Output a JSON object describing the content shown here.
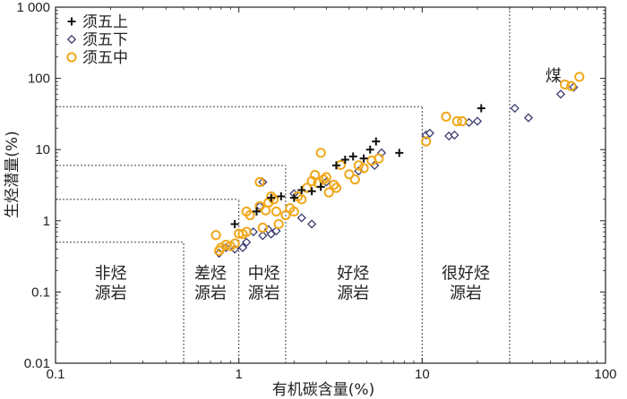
{
  "chart_data": {
    "type": "scatter",
    "x_scale": "log",
    "y_scale": "log",
    "xlim": [
      0.1,
      100
    ],
    "ylim": [
      0.01,
      1000
    ],
    "xlabel": "有机碳含量(%)",
    "ylabel": "生烃潜量(%)",
    "x_ticks": [
      "0.1",
      "1",
      "10",
      "100"
    ],
    "y_ticks": [
      "0.01",
      "0.1",
      "1",
      "10",
      "100",
      "1 000"
    ],
    "legend_position": "top-left",
    "region_labels": [
      {
        "text": [
          "非烃",
          "源岩"
        ],
        "x": 0.2,
        "y": 0.13
      },
      {
        "text": [
          "差烃",
          "源岩"
        ],
        "x": 0.7,
        "y": 0.13
      },
      {
        "text": [
          "中烃",
          "源岩"
        ],
        "x": 1.37,
        "y": 0.13
      },
      {
        "text": [
          "好烃",
          "源岩"
        ],
        "x": 4.2,
        "y": 0.13
      },
      {
        "text": [
          "很好烃",
          "源岩"
        ],
        "x": 17.3,
        "y": 0.13
      },
      {
        "text": [
          "煤"
        ],
        "x": 52,
        "y": 90
      }
    ],
    "boundaries": {
      "horizontal": [
        {
          "y": 0.5,
          "x_to": 0.5
        },
        {
          "y": 2,
          "x_to": 1
        },
        {
          "y": 6,
          "x_to": 1.8
        },
        {
          "y": 40,
          "x_to": 10
        }
      ],
      "vertical": [
        {
          "x": 0.5,
          "y_to": 0.5
        },
        {
          "x": 1,
          "y_to": 2
        },
        {
          "x": 1.8,
          "y_to": 6
        },
        {
          "x": 10,
          "y_to": 40
        },
        {
          "x": 30,
          "y_to": 1000
        }
      ]
    },
    "series": [
      {
        "name": "须五上",
        "marker": "plus",
        "color": "#111111",
        "points": [
          [
            0.95,
            0.9
          ],
          [
            1.25,
            1.35
          ],
          [
            1.5,
            2.1
          ],
          [
            1.7,
            2.2
          ],
          [
            2.0,
            2.1
          ],
          [
            2.2,
            2.7
          ],
          [
            2.5,
            2.6
          ],
          [
            2.8,
            3.0
          ],
          [
            3.4,
            6.0
          ],
          [
            3.8,
            7.2
          ],
          [
            4.2,
            8.0
          ],
          [
            4.8,
            7.5
          ],
          [
            5.2,
            10.0
          ],
          [
            5.6,
            13.0
          ],
          [
            7.5,
            9.0
          ],
          [
            21,
            38
          ]
        ]
      },
      {
        "name": "须五下",
        "marker": "diamond",
        "color": "#3c3c70",
        "points": [
          [
            0.78,
            0.35
          ],
          [
            0.85,
            0.42
          ],
          [
            0.95,
            0.4
          ],
          [
            1.05,
            0.42
          ],
          [
            1.1,
            0.5
          ],
          [
            1.2,
            0.7
          ],
          [
            1.35,
            0.62
          ],
          [
            1.45,
            0.75
          ],
          [
            1.5,
            0.65
          ],
          [
            1.6,
            0.72
          ],
          [
            1.35,
            3.5
          ],
          [
            1.3,
            1.6
          ],
          [
            2.0,
            2.4
          ],
          [
            2.2,
            1.1
          ],
          [
            2.5,
            0.9
          ],
          [
            3.0,
            3.5
          ],
          [
            4.5,
            5.0
          ],
          [
            5.5,
            6.0
          ],
          [
            6.0,
            9.0
          ],
          [
            10.5,
            16
          ],
          [
            11,
            17
          ],
          [
            14,
            15.5
          ],
          [
            15,
            16
          ],
          [
            18,
            24
          ],
          [
            20,
            25
          ],
          [
            32,
            38
          ],
          [
            38,
            28
          ],
          [
            57,
            60
          ],
          [
            67,
            75
          ]
        ]
      },
      {
        "name": "须五中",
        "marker": "circle",
        "color": "#f0a81c",
        "points": [
          [
            0.75,
            0.63
          ],
          [
            0.78,
            0.38
          ],
          [
            0.8,
            0.42
          ],
          [
            0.85,
            0.46
          ],
          [
            0.9,
            0.44
          ],
          [
            0.95,
            0.48
          ],
          [
            1.0,
            0.66
          ],
          [
            1.05,
            0.65
          ],
          [
            1.1,
            0.7
          ],
          [
            1.1,
            1.35
          ],
          [
            1.15,
            1.2
          ],
          [
            1.3,
            3.5
          ],
          [
            1.3,
            1.6
          ],
          [
            1.35,
            0.8
          ],
          [
            1.4,
            1.4
          ],
          [
            1.45,
            1.8
          ],
          [
            1.5,
            2.2
          ],
          [
            1.55,
            2.0
          ],
          [
            1.6,
            1.35
          ],
          [
            1.65,
            0.9
          ],
          [
            1.8,
            1.2
          ],
          [
            1.9,
            1.5
          ],
          [
            2.0,
            1.35
          ],
          [
            2.1,
            2.2
          ],
          [
            2.2,
            2.0
          ],
          [
            2.35,
            2.9
          ],
          [
            2.5,
            3.6
          ],
          [
            2.6,
            4.4
          ],
          [
            2.7,
            3.4
          ],
          [
            2.8,
            9.0
          ],
          [
            2.9,
            3.8
          ],
          [
            3.0,
            4.1
          ],
          [
            3.1,
            2.5
          ],
          [
            3.3,
            3.2
          ],
          [
            3.4,
            2.9
          ],
          [
            3.6,
            6.1
          ],
          [
            4.0,
            4.5
          ],
          [
            4.3,
            3.8
          ],
          [
            4.5,
            6.0
          ],
          [
            4.8,
            5.5
          ],
          [
            5.3,
            7.0
          ],
          [
            5.8,
            7.5
          ],
          [
            10.5,
            13
          ],
          [
            13.5,
            29
          ],
          [
            15.5,
            25
          ],
          [
            16.5,
            25
          ],
          [
            60,
            82
          ],
          [
            65,
            78
          ],
          [
            72,
            105
          ]
        ]
      }
    ]
  }
}
